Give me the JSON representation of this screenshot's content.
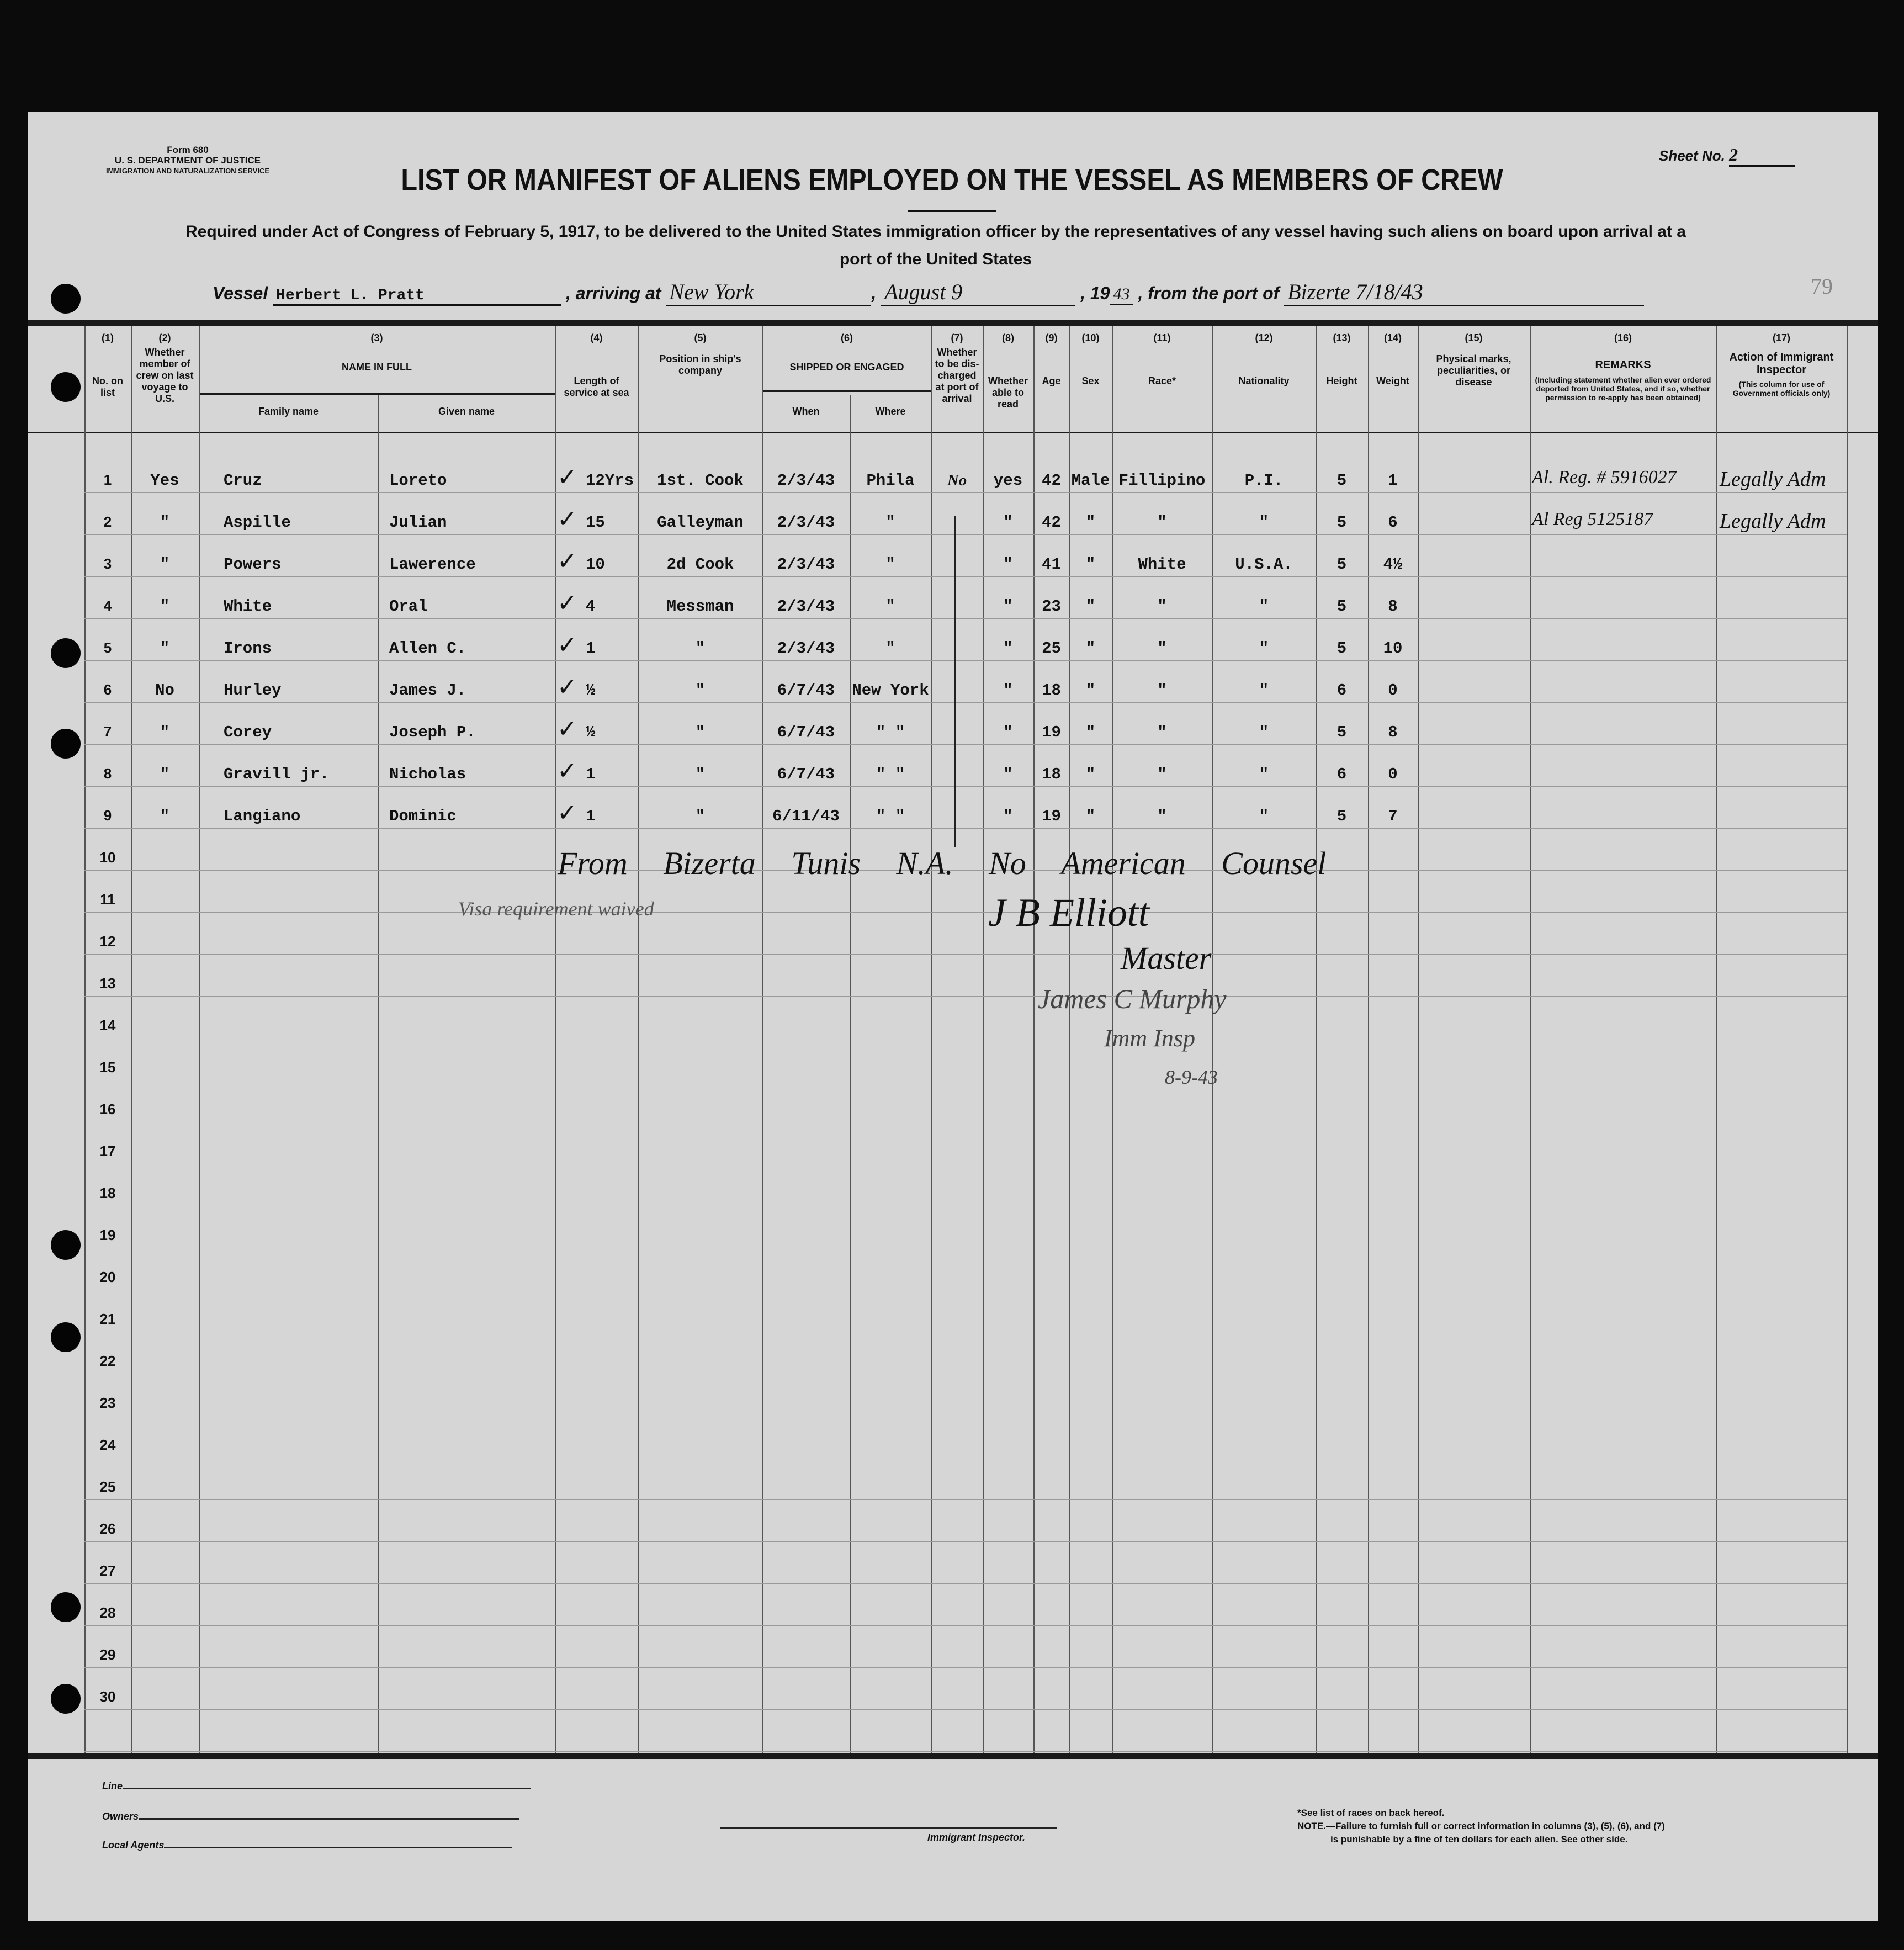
{
  "form": {
    "form_number": "Form 680",
    "department": "U. S. DEPARTMENT OF JUSTICE",
    "service": "IMMIGRATION AND NATURALIZATION SERVICE",
    "sheet_label": "Sheet No.",
    "sheet_no": "2",
    "title": "LIST OR MANIFEST OF ALIENS EMPLOYED ON THE VESSEL AS MEMBERS OF CREW",
    "subtitle_line1": "Required under Act of Congress of February 5, 1917, to be delivered to the United States immigration officer by the representatives of any vessel having such aliens on board upon arrival at a",
    "subtitle_line2": "port of the United States",
    "page_number": "79"
  },
  "voyage": {
    "vessel_label": "Vessel",
    "vessel": "Herbert L. Pratt",
    "arriving_label": ", arriving at",
    "arriving_at": "New York",
    "date": "August 9",
    "year_prefix": ", 19",
    "year": "43",
    "from_label": ", from the port of",
    "from_port": "Bizerte 7/18/43"
  },
  "columns": [
    {
      "num": "(1)",
      "label": "No. on list"
    },
    {
      "num": "(2)",
      "label": "Whether member of crew on last voyage to U.S."
    },
    {
      "num": "(3)",
      "label": "NAME IN FULL",
      "sub": [
        "Family name",
        "Given name"
      ]
    },
    {
      "num": "(4)",
      "label": "Length of service at sea"
    },
    {
      "num": "(5)",
      "label": "Position in ship's company"
    },
    {
      "num": "(6)",
      "label": "SHIPPED OR ENGAGED",
      "sub": [
        "When",
        "Where"
      ]
    },
    {
      "num": "(7)",
      "label": "Whether to be dis-charged at port of arrival"
    },
    {
      "num": "(8)",
      "label": "Whether able to read"
    },
    {
      "num": "(9)",
      "label": "Age"
    },
    {
      "num": "(10)",
      "label": "Sex"
    },
    {
      "num": "(11)",
      "label": "Race*"
    },
    {
      "num": "(12)",
      "label": "Nationality"
    },
    {
      "num": "(13)",
      "label": "Height"
    },
    {
      "num": "(14)",
      "label": "Weight"
    },
    {
      "num": "(15)",
      "label": "Physical marks, peculiarities, or disease"
    },
    {
      "num": "(16)",
      "label": "REMARKS",
      "note": "(Including statement whether alien ever ordered deported from United States, and if so, whether permission to re-apply has been obtained)"
    },
    {
      "num": "(17)",
      "label": "Action of Immigrant Inspector",
      "note": "(This column for use of Government officials only)"
    }
  ],
  "row_numbers": [
    "1",
    "2",
    "3",
    "4",
    "5",
    "6",
    "7",
    "8",
    "9",
    "10",
    "11",
    "12",
    "13",
    "14",
    "15",
    "16",
    "17",
    "18",
    "19",
    "20",
    "21",
    "22",
    "23",
    "24",
    "25",
    "26",
    "27",
    "28",
    "29",
    "30"
  ],
  "crew": [
    {
      "prev": "Yes",
      "family": "Cruz",
      "given": "Loreto",
      "service": "12Yrs",
      "position": "1st. Cook",
      "when": "2/3/43",
      "where": "Phila",
      "discharged": "No",
      "read": "yes",
      "age": "42",
      "sex": "Male",
      "race": "Fillipino",
      "nationality": "P.I.",
      "height": "5",
      "weight": "1",
      "remarks": "Al. Reg. # 5916027",
      "action": "Legally Adm"
    },
    {
      "prev": "\"",
      "family": "Aspille",
      "given": "Julian",
      "service": "15",
      "position": "Galleyman",
      "when": "2/3/43",
      "where": "\"",
      "discharged": "",
      "read": "\"",
      "age": "42",
      "sex": "\"",
      "race": "\"",
      "nationality": "\"",
      "height": "5",
      "weight": "6",
      "remarks": "Al Reg 5125187",
      "action": "Legally Adm"
    },
    {
      "prev": "\"",
      "family": "Powers",
      "given": "Lawerence",
      "service": "10",
      "position": "2d Cook",
      "when": "2/3/43",
      "where": "\"",
      "discharged": "",
      "read": "\"",
      "age": "41",
      "sex": "\"",
      "race": "White",
      "nationality": "U.S.A.",
      "height": "5",
      "weight": "4½",
      "remarks": "",
      "action": ""
    },
    {
      "prev": "\"",
      "family": "White",
      "given": "Oral",
      "service": "4",
      "position": "Messman",
      "when": "2/3/43",
      "where": "\"",
      "discharged": "",
      "read": "\"",
      "age": "23",
      "sex": "\"",
      "race": "\"",
      "nationality": "\"",
      "height": "5",
      "weight": "8",
      "remarks": "",
      "action": ""
    },
    {
      "prev": "\"",
      "family": "Irons",
      "given": "Allen C.",
      "service": "1",
      "position": "\"",
      "when": "2/3/43",
      "where": "\"",
      "discharged": "",
      "read": "\"",
      "age": "25",
      "sex": "\"",
      "race": "\"",
      "nationality": "\"",
      "height": "5",
      "weight": "10",
      "remarks": "",
      "action": ""
    },
    {
      "prev": "No",
      "family": "Hurley",
      "given": "James J.",
      "service": "½",
      "position": "\"",
      "when": "6/7/43",
      "where": "New York",
      "discharged": "",
      "read": "\"",
      "age": "18",
      "sex": "\"",
      "race": "\"",
      "nationality": "\"",
      "height": "6",
      "weight": "0",
      "remarks": "",
      "action": ""
    },
    {
      "prev": "\"",
      "family": "Corey",
      "given": "Joseph P.",
      "service": "½",
      "position": "\"",
      "when": "6/7/43",
      "where": "\"   \"",
      "discharged": "",
      "read": "\"",
      "age": "19",
      "sex": "\"",
      "race": "\"",
      "nationality": "\"",
      "height": "5",
      "weight": "8",
      "remarks": "",
      "action": ""
    },
    {
      "prev": "\"",
      "family": "Gravill jr.",
      "given": "Nicholas",
      "service": "1",
      "position": "\"",
      "when": "6/7/43",
      "where": "\"   \"",
      "discharged": "",
      "read": "\"",
      "age": "18",
      "sex": "\"",
      "race": "\"",
      "nationality": "\"",
      "height": "6",
      "weight": "0",
      "remarks": "",
      "action": ""
    },
    {
      "prev": "\"",
      "family": "Langiano",
      "given": "Dominic",
      "service": "1",
      "position": "\"",
      "when": "6/11/43",
      "where": "\"   \"",
      "discharged": "",
      "read": "\"",
      "age": "19",
      "sex": "\"",
      "race": "\"",
      "nationality": "\"",
      "height": "5",
      "weight": "7",
      "remarks": "",
      "action": ""
    }
  ],
  "annotations": {
    "note_line": "From Bizerta Tunis N.A. No American Counsel",
    "visa_note": "Visa requirement waived",
    "master_signature": "J B Elliott",
    "master_title": "Master",
    "inspector_signature": "James C Murphy",
    "inspector_title": "Imm Insp",
    "inspection_date": "8-9-43"
  },
  "footer": {
    "line_label": "Line",
    "owners_label": "Owners",
    "agents_label": "Local Agents",
    "inspector_label": "Immigrant Inspector.",
    "race_note": "*See list of races on back hereof.",
    "note_1": "NOTE.—Failure to furnish full or correct information in columns (3), (5), (6), and (7)",
    "note_2": "is punishable by a fine of ten dollars for each alien.  See other side."
  }
}
